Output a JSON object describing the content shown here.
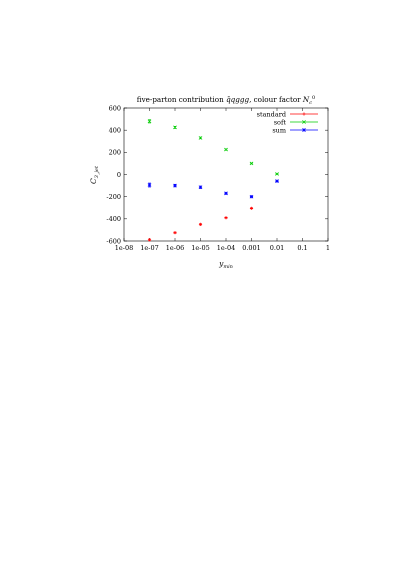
{
  "chart_data": {
    "type": "scatter",
    "title": "five-parton contribution q̄qggg, colour factor N_c^0",
    "xlabel": "y_min",
    "ylabel": "C_3_jet",
    "xscale": "log",
    "xlim": [
      1e-08,
      1
    ],
    "ylim": [
      -600,
      600
    ],
    "x_ticks": [
      "1e-08",
      "1e-07",
      "1e-06",
      "1e-05",
      "1e-04",
      "0.001",
      "0.01",
      "0.1",
      "1"
    ],
    "y_ticks": [
      "-600",
      "-400",
      "-200",
      "0",
      "200",
      "400",
      "600"
    ],
    "legend_position": "top-right",
    "grid": false,
    "series": [
      {
        "name": "standard",
        "color": "#ff0000",
        "marker": "plus",
        "x": [
          1e-07,
          1e-06,
          1e-05,
          0.0001,
          0.001
        ],
        "y": [
          -590,
          -525,
          -450,
          -390,
          -305
        ],
        "err": [
          8,
          6,
          6,
          5,
          5
        ]
      },
      {
        "name": "soft",
        "color": "#00cc00",
        "marker": "cross",
        "x": [
          1e-07,
          1e-06,
          1e-05,
          0.0001,
          0.001,
          0.01
        ],
        "y": [
          480,
          425,
          330,
          225,
          100,
          5
        ],
        "err": [
          15,
          10,
          8,
          6,
          5,
          4
        ]
      },
      {
        "name": "sum",
        "color": "#0000ff",
        "marker": "star",
        "x": [
          1e-07,
          1e-06,
          1e-05,
          0.0001,
          0.001,
          0.01
        ],
        "y": [
          -95,
          -100,
          -115,
          -170,
          -200,
          -60
        ],
        "err": [
          18,
          12,
          10,
          8,
          6,
          5
        ]
      }
    ]
  }
}
